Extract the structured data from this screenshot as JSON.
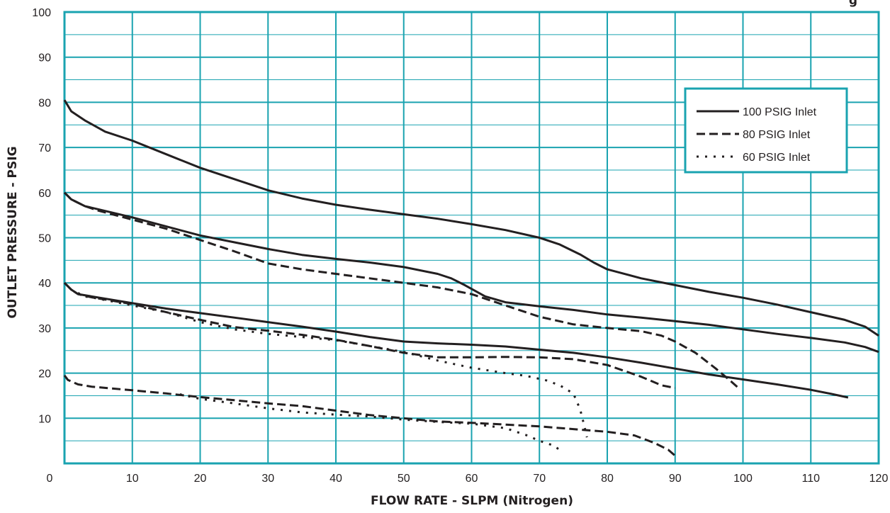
{
  "chart_data": {
    "type": "line",
    "title": "",
    "top_right_text": "g",
    "xlabel": "FLOW RATE - SLPM (Nitrogen)",
    "ylabel": "OUTLET PRESSURE - PSIG",
    "xlim": [
      0,
      120
    ],
    "ylim": [
      0,
      100
    ],
    "x_ticks": [
      0,
      10,
      20,
      30,
      40,
      50,
      60,
      70,
      80,
      90,
      100,
      110,
      120
    ],
    "y_ticks": [
      10,
      20,
      30,
      40,
      50,
      60,
      70,
      80,
      90,
      100
    ],
    "grid": true,
    "grid_color": "#1aa3b0",
    "line_color": "#231f20",
    "legend_position": "top-right",
    "legend": [
      {
        "label": "100 PSIG Inlet",
        "style": "solid"
      },
      {
        "label": "80 PSIG Inlet",
        "style": "dashed"
      },
      {
        "label": "60 PSIG Inlet",
        "style": "dotted"
      }
    ],
    "series": [
      {
        "inlet": "100 PSIG Inlet",
        "style": "solid",
        "x": [
          0,
          1,
          3,
          6,
          10,
          15,
          20,
          25,
          30,
          35,
          40,
          45,
          50,
          55,
          60,
          65,
          70,
          73,
          76,
          78,
          80,
          85,
          90,
          95,
          100,
          105,
          110,
          115,
          118,
          120
        ],
        "y": [
          80.5,
          78,
          76,
          73.5,
          71.5,
          68.5,
          65.5,
          63,
          60.5,
          58.7,
          57.3,
          56.2,
          55.2,
          54.2,
          53,
          51.7,
          50,
          48.5,
          46.3,
          44.5,
          43,
          41,
          39.5,
          38,
          36.7,
          35.2,
          33.5,
          31.8,
          30.3,
          28.3
        ]
      },
      {
        "inlet": "100 PSIG Inlet",
        "style": "solid",
        "x": [
          0,
          1,
          3,
          5,
          10,
          15,
          20,
          25,
          30,
          35,
          40,
          45,
          50,
          55,
          57,
          59,
          62,
          65,
          70,
          75,
          80,
          85,
          90,
          95,
          100,
          105,
          110,
          115,
          118,
          120
        ],
        "y": [
          60,
          58.5,
          57,
          56.3,
          54.5,
          52.5,
          50.5,
          49,
          47.5,
          46.2,
          45.3,
          44.5,
          43.5,
          42,
          41,
          39.5,
          37,
          35.7,
          34.8,
          34,
          33,
          32.3,
          31.5,
          30.7,
          29.7,
          28.7,
          27.8,
          26.8,
          25.8,
          24.7
        ]
      },
      {
        "inlet": "100 PSIG Inlet",
        "style": "solid",
        "x": [
          0,
          1,
          2,
          4,
          10,
          15,
          20,
          25,
          30,
          35,
          40,
          45,
          50,
          55,
          60,
          65,
          70,
          75,
          80,
          85,
          90,
          95,
          100,
          105,
          110,
          113,
          115.5
        ],
        "y": [
          40,
          38.5,
          37.5,
          37,
          35.5,
          34.3,
          33.3,
          32.3,
          31.3,
          30.3,
          29.2,
          28,
          27,
          26.6,
          26.3,
          25.9,
          25.2,
          24.5,
          23.5,
          22.3,
          21,
          19.7,
          18.6,
          17.5,
          16.3,
          15.4,
          14.6
        ]
      },
      {
        "inlet": "80 PSIG Inlet",
        "style": "dashed",
        "x": [
          0,
          1,
          3,
          5,
          10,
          15,
          20,
          25,
          30,
          35,
          40,
          45,
          50,
          55,
          60,
          65,
          70,
          75,
          80,
          85,
          88,
          90,
          93,
          96,
          98,
          99.5
        ],
        "y": [
          60,
          58.5,
          57,
          56,
          54,
          52,
          49.5,
          47,
          44.3,
          43,
          42,
          41,
          40,
          39,
          37.5,
          35,
          32.5,
          30.8,
          30,
          29.3,
          28.3,
          27,
          24.5,
          21,
          18.5,
          16.5
        ]
      },
      {
        "inlet": "80 PSIG Inlet",
        "style": "dashed",
        "x": [
          0,
          1,
          2,
          4,
          10,
          15,
          20,
          25,
          30,
          35,
          40,
          45,
          50,
          55,
          60,
          65,
          70,
          75,
          80,
          85,
          88,
          90
        ],
        "y": [
          40,
          38.5,
          37.5,
          36.8,
          35.3,
          33.5,
          31.8,
          30.2,
          29.4,
          28.5,
          27.4,
          26,
          24.5,
          23.5,
          23.5,
          23.6,
          23.5,
          23.1,
          21.8,
          19.2,
          17.3,
          16.7
        ]
      },
      {
        "inlet": "80 PSIG Inlet",
        "style": "dashed",
        "x": [
          0,
          0.5,
          2,
          4,
          10,
          15,
          20,
          25,
          30,
          35,
          40,
          45,
          50,
          55,
          60,
          65,
          70,
          75,
          80,
          84,
          87,
          89,
          90
        ],
        "y": [
          19.5,
          18.5,
          17.5,
          17,
          16.2,
          15.5,
          14.7,
          14,
          13.3,
          12.7,
          11.7,
          10.7,
          10,
          9.3,
          9,
          8.6,
          8.2,
          7.6,
          7,
          6.2,
          4.5,
          3,
          1.7
        ]
      },
      {
        "inlet": "60 PSIG Inlet",
        "style": "dotted",
        "x": [
          0,
          1,
          3,
          5,
          10,
          15,
          20,
          25,
          30,
          35,
          40,
          45,
          50,
          55,
          60,
          65,
          68,
          71,
          73,
          75,
          76,
          76.5,
          77
        ],
        "y": [
          40,
          38.5,
          37,
          36.5,
          35,
          33.5,
          31.3,
          29.7,
          28.7,
          28,
          27.3,
          26,
          24.7,
          22.8,
          21.2,
          20,
          19.4,
          18.4,
          17.3,
          15.5,
          12,
          9,
          5.8
        ]
      },
      {
        "inlet": "60 PSIG Inlet",
        "style": "dotted",
        "x": [
          17,
          20,
          25,
          30,
          35,
          40,
          45,
          50,
          55,
          60,
          65,
          68,
          70,
          72,
          73
        ],
        "y": [
          15.3,
          14.3,
          13.3,
          12.2,
          11.3,
          10.8,
          10.4,
          9.7,
          9.2,
          8.8,
          7.8,
          6.3,
          5,
          4,
          3
        ]
      }
    ]
  }
}
